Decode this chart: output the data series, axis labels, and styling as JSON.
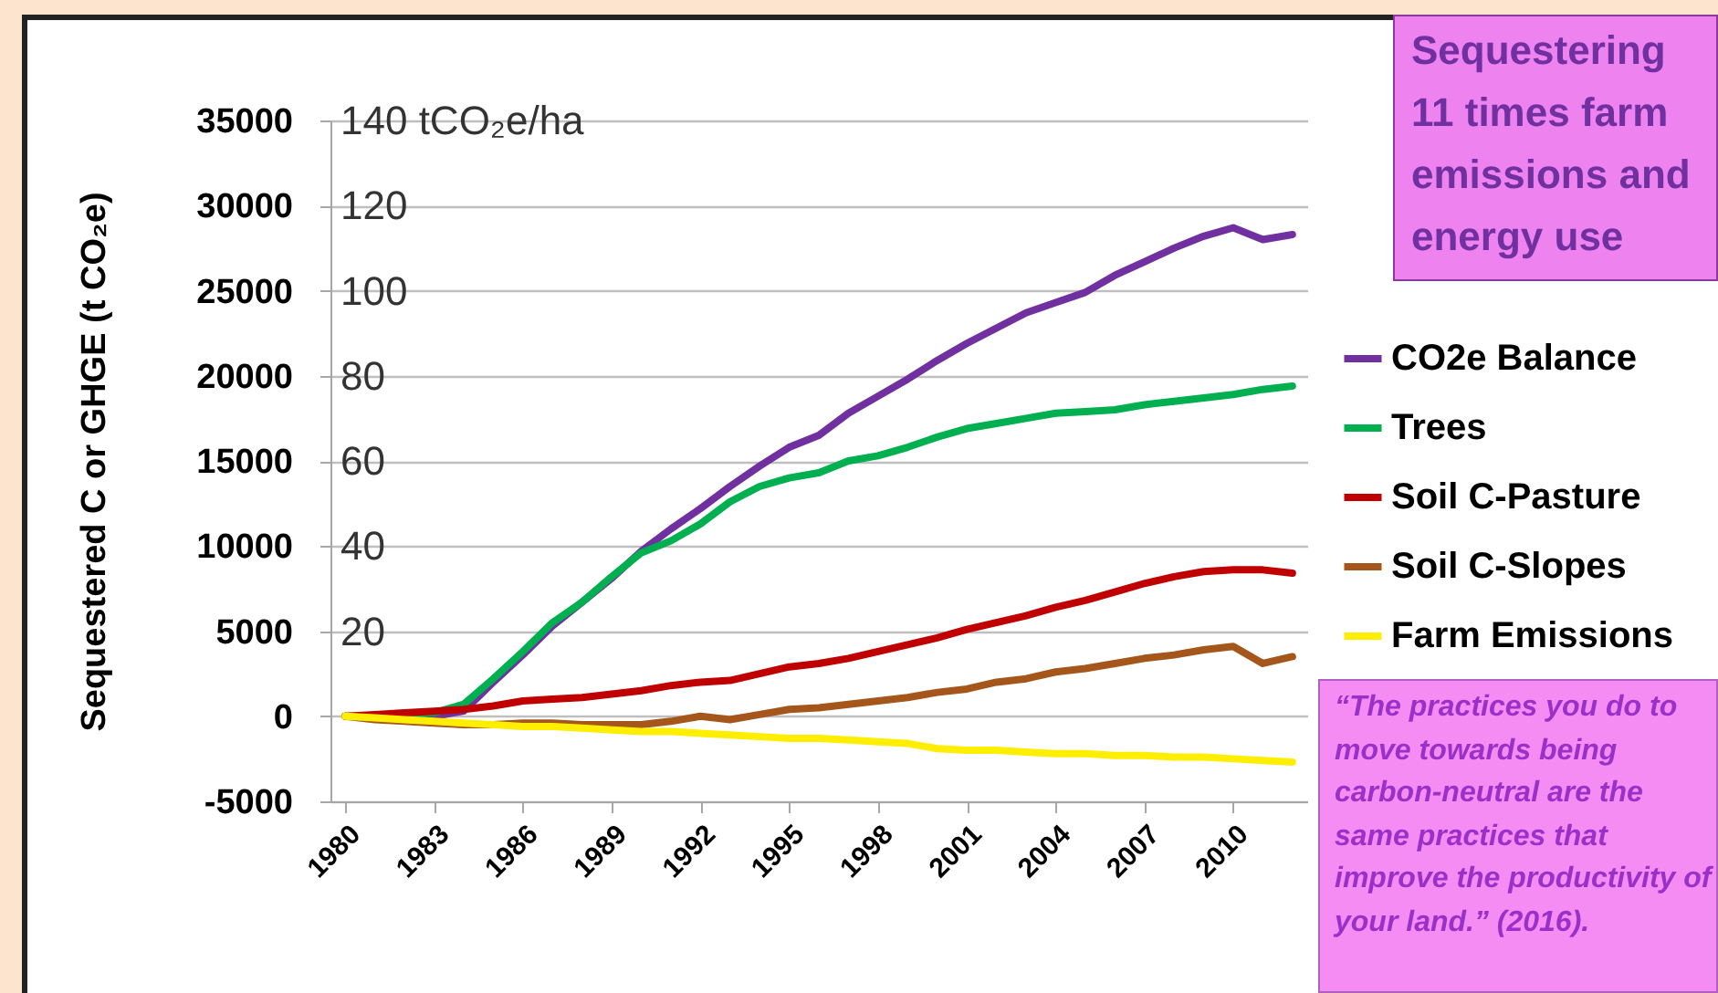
{
  "chart_data": {
    "type": "line",
    "categories": [
      "1980",
      null,
      null,
      "1983",
      null,
      null,
      "1986",
      null,
      null,
      "1989",
      null,
      null,
      "1992",
      null,
      null,
      "1995",
      null,
      null,
      "1998",
      null,
      null,
      "2001",
      null,
      null,
      "2004",
      null,
      null,
      "2007",
      null,
      null,
      "2010",
      null,
      null
    ],
    "ylabel": "Sequestered C or GHGE (t CO₂e)",
    "ylim": [
      -5000,
      35000
    ],
    "yticks": [
      -5000,
      0,
      5000,
      10000,
      15000,
      20000,
      25000,
      30000,
      35000
    ],
    "y2lim": [
      -20,
      140
    ],
    "y2ticks": [
      20,
      40,
      60,
      80,
      100,
      120,
      {
        "value": 140,
        "label": "140 tCO₂e/ha"
      }
    ],
    "grid": "y",
    "legend": "right",
    "series": [
      {
        "name": "CO2e Balance",
        "color": "#7030a0",
        "values": [
          null,
          null,
          0,
          0,
          300,
          2000,
          3600,
          5300,
          6700,
          8100,
          9700,
          11000,
          12200,
          13500,
          14700,
          15800,
          16500,
          17800,
          18800,
          19800,
          20900,
          21900,
          22800,
          23700,
          24300,
          24900,
          25900,
          26700,
          27500,
          28200,
          28700,
          28000,
          28300
        ]
      },
      {
        "name": "Trees",
        "color": "#00b050",
        "values": [
          0,
          0,
          100,
          200,
          700,
          2200,
          3800,
          5500,
          6700,
          8200,
          9600,
          10300,
          11300,
          12600,
          13500,
          14000,
          14300,
          15000,
          15300,
          15800,
          16400,
          16900,
          17200,
          17500,
          17800,
          17900,
          18000,
          18300,
          18500,
          18700,
          18900,
          19200,
          19400
        ]
      },
      {
        "name": "Soil C-Pasture",
        "color": "#c00000",
        "values": [
          0,
          100,
          200,
          300,
          400,
          600,
          900,
          1000,
          1100,
          1300,
          1500,
          1800,
          2000,
          2100,
          2500,
          2900,
          3100,
          3400,
          3800,
          4200,
          4600,
          5100,
          5500,
          5900,
          6400,
          6800,
          7300,
          7800,
          8200,
          8500,
          8600,
          8600,
          8400
        ]
      },
      {
        "name": "Soil C-Slopes",
        "color": "#a5561b",
        "values": [
          0,
          -200,
          -300,
          -400,
          -500,
          -500,
          -400,
          -400,
          -500,
          -500,
          -500,
          -300,
          0,
          -200,
          100,
          400,
          500,
          700,
          900,
          1100,
          1400,
          1600,
          2000,
          2200,
          2600,
          2800,
          3100,
          3400,
          3600,
          3900,
          4100,
          3100,
          3500
        ]
      },
      {
        "name": "Farm Emissions",
        "color": "#ffee00",
        "values": [
          0,
          -100,
          -200,
          -300,
          -400,
          -500,
          -600,
          -600,
          -700,
          -800,
          -900,
          -900,
          -1000,
          -1100,
          -1200,
          -1300,
          -1300,
          -1400,
          -1500,
          -1600,
          -1900,
          -2000,
          -2000,
          -2100,
          -2200,
          -2200,
          -2300,
          -2300,
          -2400,
          -2400,
          -2500,
          -2600,
          -2700
        ]
      }
    ],
    "annotations": [
      "Sequestering 11 times farm emissions and energy use",
      "“The practices you do to move towards being carbon-neutral are the same practices that improve the productivity of your land.” (2016)."
    ]
  }
}
